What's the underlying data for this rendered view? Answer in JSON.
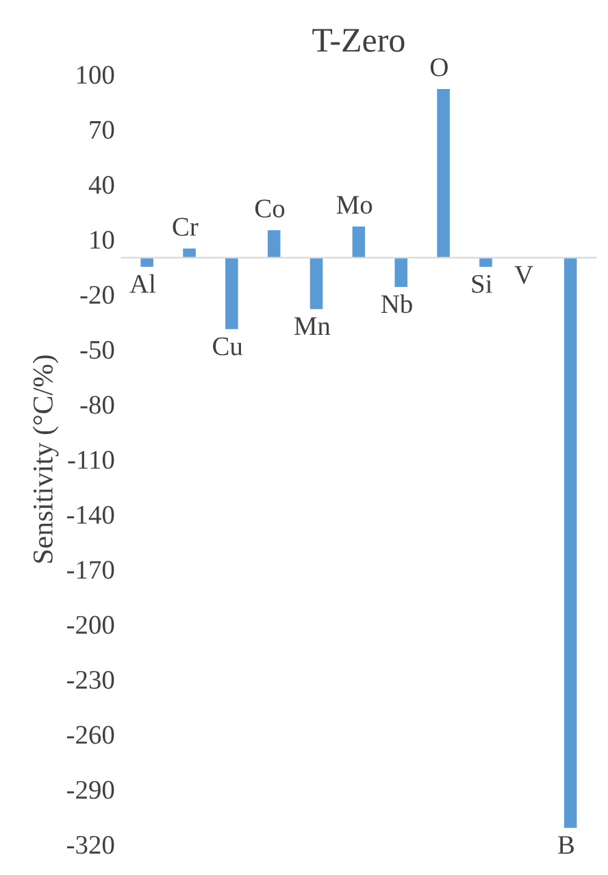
{
  "chart_data": {
    "type": "bar",
    "title": "T-Zero",
    "ylabel": "Sensitivity (°C/%)",
    "categories": [
      "Al",
      "Cr",
      "Cu",
      "Co",
      "Mn",
      "Mo",
      "Nb",
      "O",
      "Si",
      "V",
      "B"
    ],
    "values": [
      -5,
      5,
      -39,
      15,
      -28,
      17,
      -16,
      92,
      -5,
      0,
      -311
    ],
    "color": "#5b9bd5",
    "ylim": [
      -320,
      100
    ],
    "yticks": [
      100,
      70,
      40,
      10,
      -20,
      -50,
      -80,
      -110,
      -140,
      -170,
      -200,
      -230,
      -260,
      -290,
      -320
    ],
    "grid": false
  }
}
